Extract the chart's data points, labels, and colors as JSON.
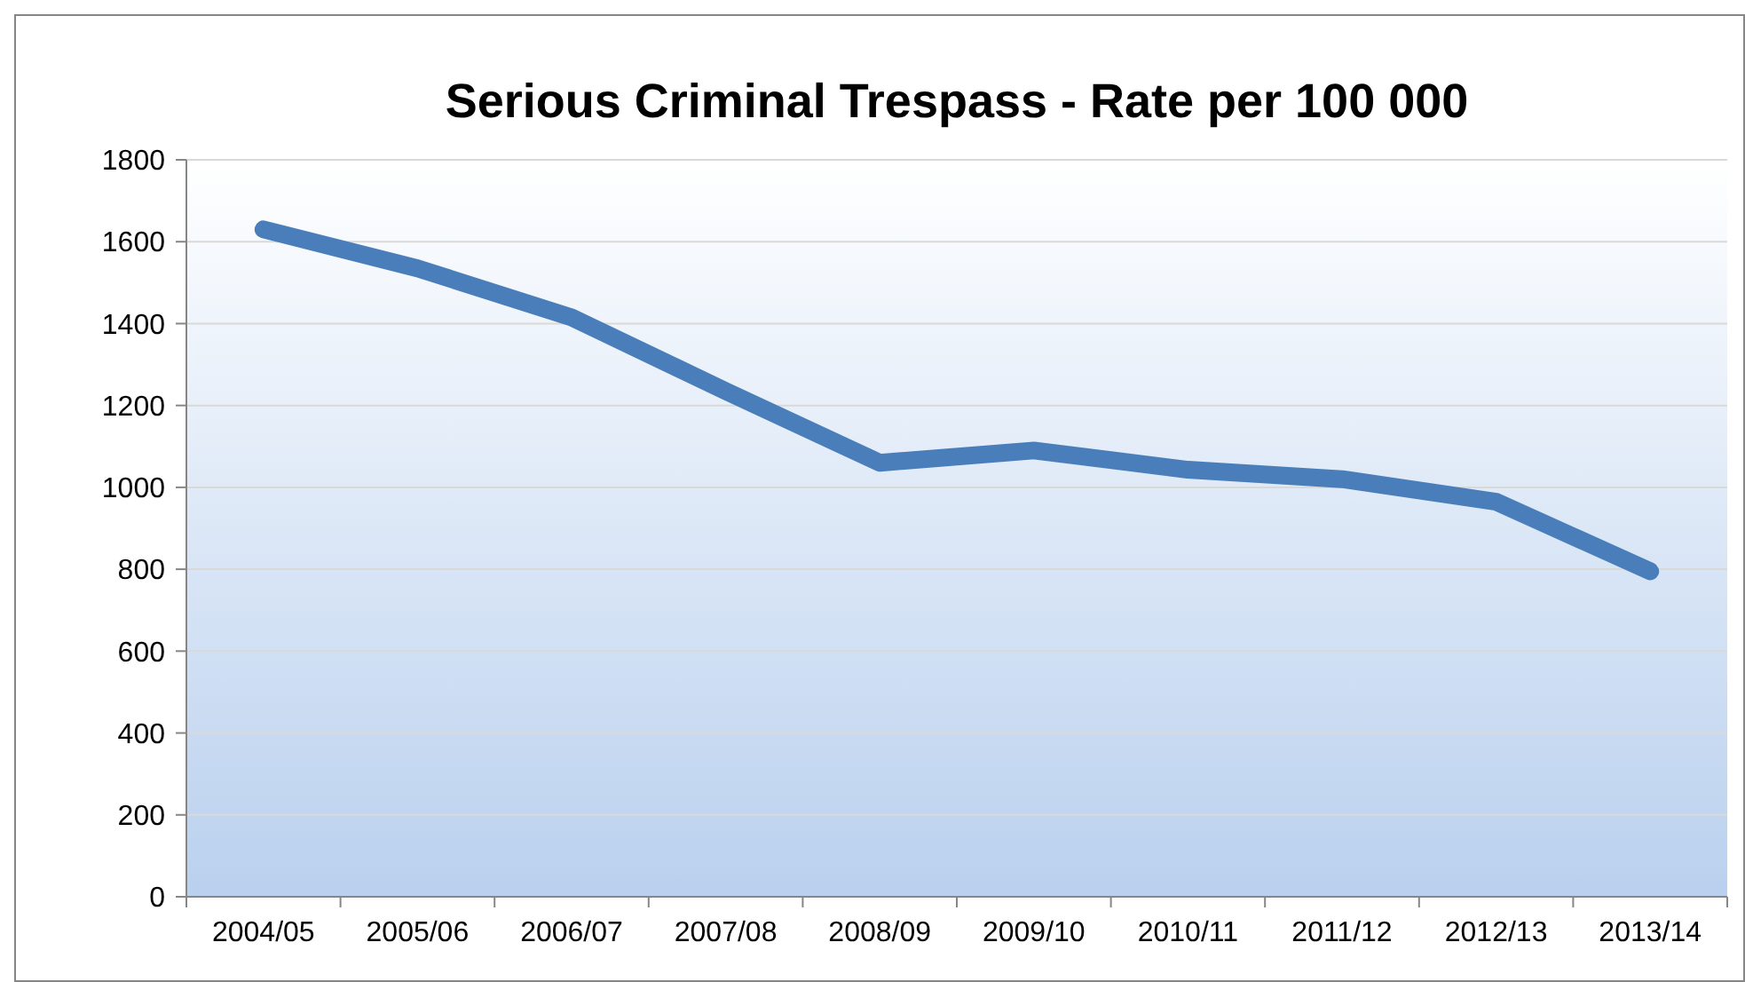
{
  "chart_data": {
    "type": "line",
    "title": "Serious Criminal Trespass - Rate per 100 000",
    "categories": [
      "2004/05",
      "2005/06",
      "2006/07",
      "2007/08",
      "2008/09",
      "2009/10",
      "2010/11",
      "2011/12",
      "2012/13",
      "2013/14"
    ],
    "series": [
      {
        "color": "#4a7ebb",
        "values": [
          1630,
          1535,
          1415,
          1235,
          1060,
          1090,
          1043,
          1020,
          965,
          795
        ]
      }
    ],
    "ylim": [
      0,
      1800
    ],
    "yticks": [
      0,
      200,
      400,
      600,
      800,
      1000,
      1200,
      1400,
      1600,
      1800
    ],
    "grid": "y",
    "marker": "none",
    "line_style": "solid"
  }
}
